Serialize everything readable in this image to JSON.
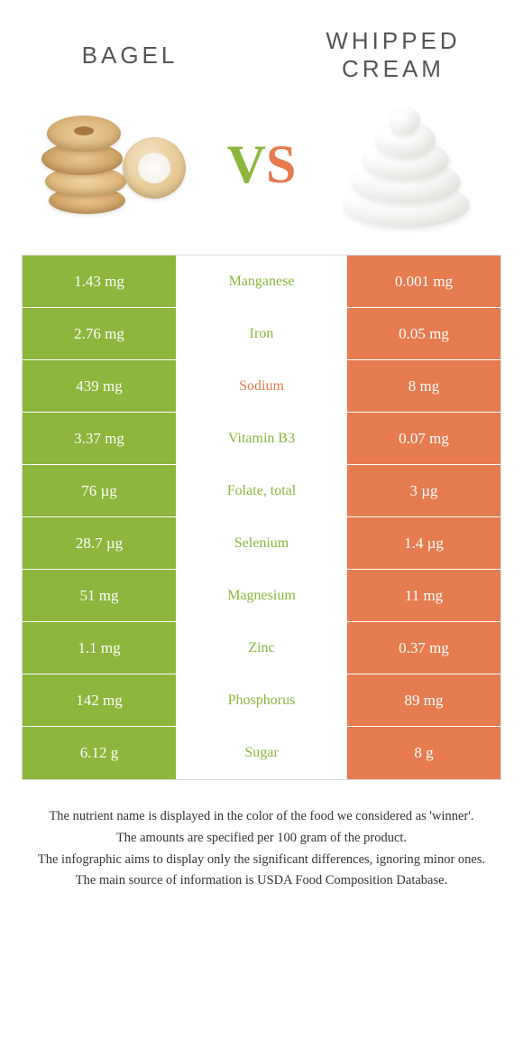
{
  "colors": {
    "left": "#8cb63c",
    "right": "#e57b4f",
    "left_label": "#8cb63c",
    "right_label": "#e57b4f",
    "row_border": "#ffffff"
  },
  "foods": {
    "left": "Bagel",
    "right": "Whipped cream"
  },
  "vs": {
    "v": "V",
    "s": "S"
  },
  "rows": [
    {
      "left": "1.43 mg",
      "label": "Manganese",
      "right": "0.001 mg",
      "winner": "left"
    },
    {
      "left": "2.76 mg",
      "label": "Iron",
      "right": "0.05 mg",
      "winner": "left"
    },
    {
      "left": "439 mg",
      "label": "Sodium",
      "right": "8 mg",
      "winner": "right"
    },
    {
      "left": "3.37 mg",
      "label": "Vitamin B3",
      "right": "0.07 mg",
      "winner": "left"
    },
    {
      "left": "76 µg",
      "label": "Folate, total",
      "right": "3 µg",
      "winner": "left"
    },
    {
      "left": "28.7 µg",
      "label": "Selenium",
      "right": "1.4 µg",
      "winner": "left"
    },
    {
      "left": "51 mg",
      "label": "Magnesium",
      "right": "11 mg",
      "winner": "left"
    },
    {
      "left": "1.1 mg",
      "label": "Zinc",
      "right": "0.37 mg",
      "winner": "left"
    },
    {
      "left": "142 mg",
      "label": "Phosphorus",
      "right": "89 mg",
      "winner": "left"
    },
    {
      "left": "6.12 g",
      "label": "Sugar",
      "right": "8 g",
      "winner": "left"
    }
  ],
  "footer": [
    "The nutrient name is displayed in the color of the food we considered as 'winner'.",
    "The amounts are specified per 100 gram of the product.",
    "The infographic aims to display only the significant differences, ignoring minor ones.",
    "The main source of information is USDA Food Composition Database."
  ]
}
